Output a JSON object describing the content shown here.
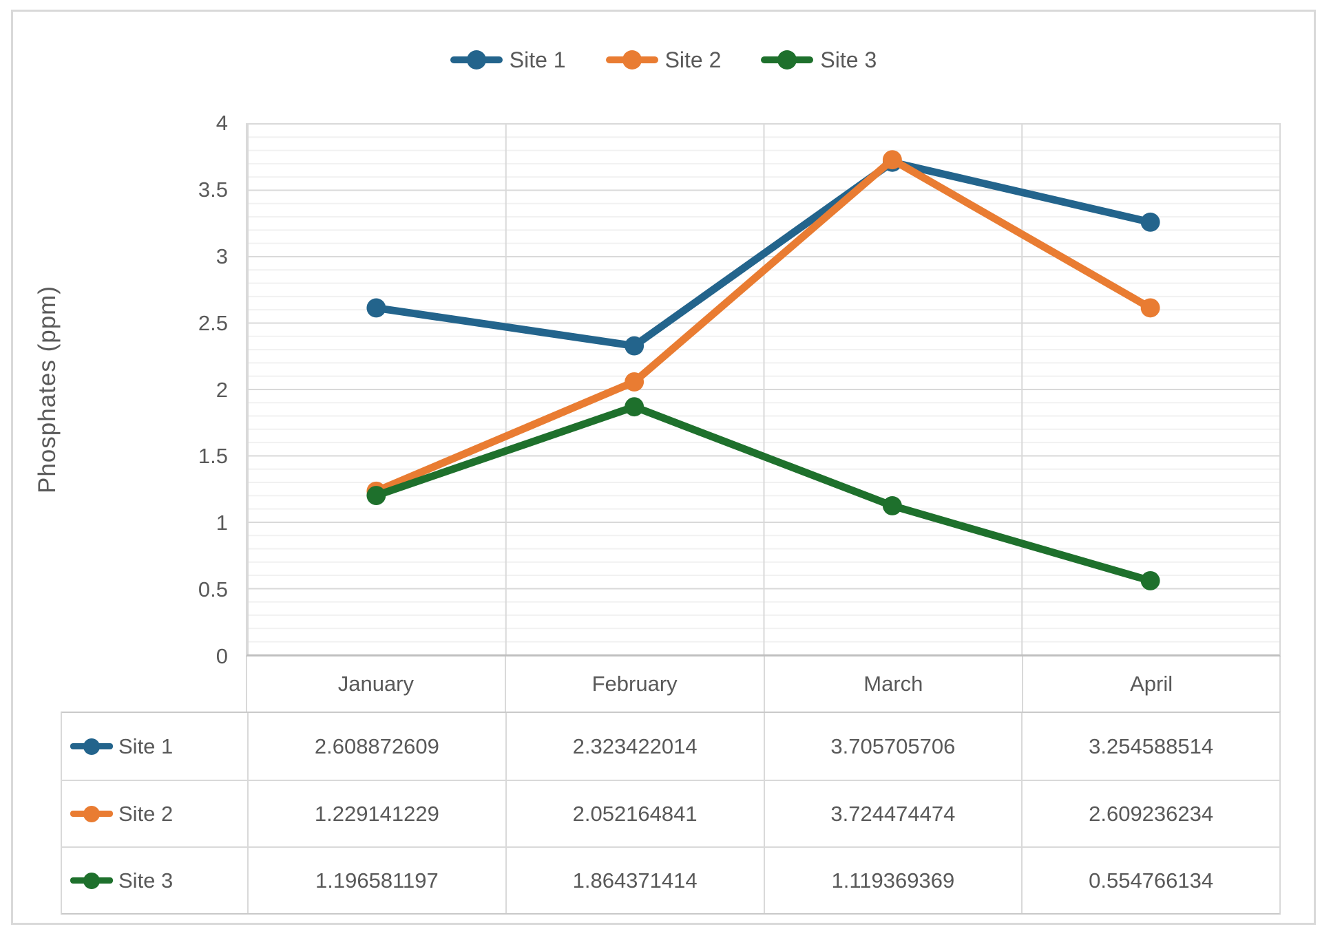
{
  "yaxis": {
    "title": "Phosphates (ppm)",
    "ticks": [
      "4",
      "3.5",
      "3",
      "2.5",
      "2",
      "1.5",
      "1",
      "0.5",
      "0"
    ]
  },
  "xaxis": {
    "categories": [
      "January",
      "February",
      "March",
      "April"
    ]
  },
  "chart_data": {
    "type": "line",
    "categories": [
      "January",
      "February",
      "March",
      "April"
    ],
    "series": [
      {
        "name": "Site 1",
        "color": "#23648C",
        "values": [
          2.608872609,
          2.323422014,
          3.705705706,
          3.254588514
        ]
      },
      {
        "name": "Site 2",
        "color": "#E97C32",
        "values": [
          1.229141229,
          2.052164841,
          3.724474474,
          2.609236234
        ]
      },
      {
        "name": "Site 3",
        "color": "#1E702C",
        "values": [
          1.196581197,
          1.864371414,
          1.119369369,
          0.554766134
        ]
      }
    ],
    "title": "",
    "xlabel": "",
    "ylabel": "Phosphates (ppm)",
    "ylim": [
      0,
      4
    ],
    "y_major_step": 0.5,
    "y_minor_step": 0.1,
    "grid": true,
    "legend_position": "top",
    "markers": "circle"
  },
  "table": {
    "rows": [
      {
        "label": "Site 1",
        "values": [
          "2.608872609",
          "2.323422014",
          "3.705705706",
          "3.254588514"
        ]
      },
      {
        "label": "Site 2",
        "values": [
          "1.229141229",
          "2.052164841",
          "3.724474474",
          "2.609236234"
        ]
      },
      {
        "label": "Site 3",
        "values": [
          "1.196581197",
          "1.864371414",
          "1.119369369",
          "0.554766134"
        ]
      }
    ]
  },
  "colors": {
    "text": "#595959",
    "grid_major": "#d9d9d9",
    "grid_minor": "#f1f1f1",
    "axis_line": "#bfbfbf",
    "frame_border": "#d9d9d9"
  }
}
